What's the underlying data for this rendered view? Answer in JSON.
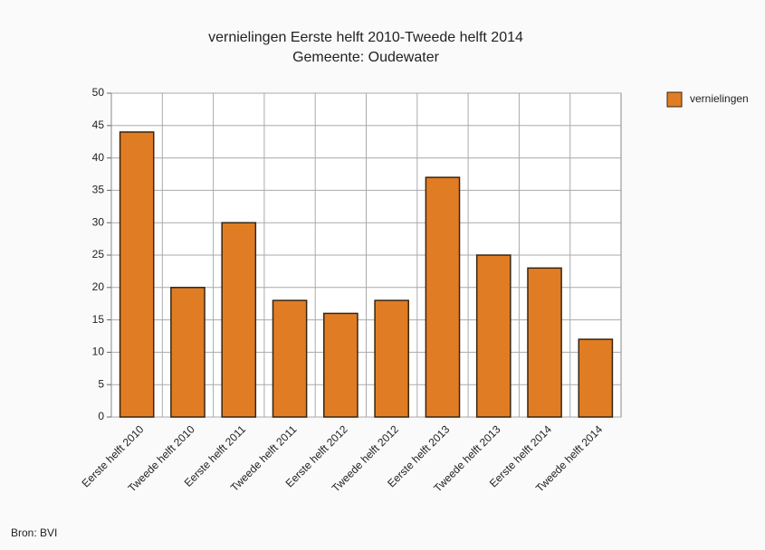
{
  "chart_data": {
    "type": "bar",
    "title": "vernielingen Eerste helft 2010-Tweede helft 2014",
    "subtitle": "Gemeente: Oudewater",
    "categories": [
      "Eerste helft 2010",
      "Tweede helft 2010",
      "Eerste helft 2011",
      "Tweede helft 2011",
      "Eerste helft 2012",
      "Tweede helft 2012",
      "Eerste helft 2013",
      "Tweede helft 2013",
      "Eerste helft 2014",
      "Tweede helft 2014"
    ],
    "series": [
      {
        "name": "vernielingen",
        "color": "#e07d24",
        "values": [
          44,
          20,
          30,
          18,
          16,
          18,
          37,
          25,
          23,
          12
        ]
      }
    ],
    "ylim": [
      0,
      50
    ],
    "yticks": [
      0,
      5,
      10,
      15,
      20,
      25,
      30,
      35,
      40,
      45,
      50
    ],
    "grid": true,
    "legend": "right",
    "source": "Bron: BVI"
  }
}
